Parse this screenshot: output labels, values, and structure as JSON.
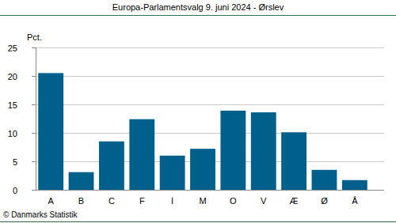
{
  "chart_data": {
    "type": "bar",
    "title": "Europa-Parlamentsvalg 9. juni 2024 - Ørslev",
    "ylabel": "Pct.",
    "source": "© Danmarks Statistik",
    "categories": [
      "A",
      "B",
      "C",
      "F",
      "I",
      "M",
      "O",
      "V",
      "Æ",
      "Ø",
      "Å"
    ],
    "values": [
      20.5,
      3.1,
      8.5,
      12.4,
      6.0,
      7.2,
      13.9,
      13.6,
      10.1,
      3.5,
      1.7
    ],
    "color": "#00608c",
    "ylim": [
      0,
      25
    ],
    "yticks": [
      0,
      5,
      10,
      15,
      20,
      25
    ],
    "grid": true
  }
}
